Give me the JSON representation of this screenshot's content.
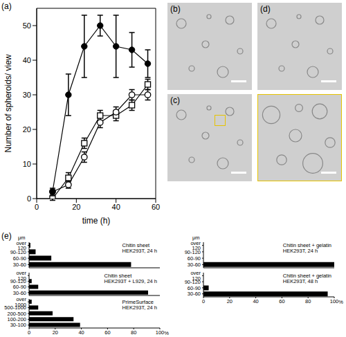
{
  "panel_labels": [
    "(a)",
    "(b)",
    "(c)",
    "(d)",
    "(e)"
  ],
  "chart_data": [
    {
      "type": "line",
      "xlabel": "time (h)",
      "ylabel": "Number of spheroids/ view",
      "xlim": [
        0,
        60
      ],
      "xticks": [
        0,
        20,
        40,
        60
      ],
      "ylim": [
        0,
        55
      ],
      "yticks": [
        0,
        10,
        20,
        30,
        40,
        50
      ],
      "x": [
        8,
        16,
        24,
        32,
        40,
        48,
        56
      ],
      "series": [
        {
          "color": "#000000",
          "marker": "open_square",
          "values": [
            0,
            6,
            16,
            24,
            24,
            27,
            33
          ],
          "errors": [
            0.5,
            1.5,
            1.5,
            1.5,
            1.5,
            1.5,
            1.5
          ]
        },
        {
          "color": "#000000",
          "marker": "open_circle",
          "values": [
            2,
            4,
            12,
            22,
            25,
            30,
            30
          ],
          "errors": [
            0.5,
            1,
            1.5,
            1.5,
            1.5,
            1.5,
            1.5
          ]
        },
        {
          "color": "#000000",
          "marker": "filled_circle",
          "values": [
            2,
            30,
            44,
            50,
            44,
            43,
            39
          ],
          "errors": [
            1,
            6,
            9,
            3,
            9,
            5,
            4
          ]
        }
      ]
    },
    {
      "type": "bar",
      "orientation": "horizontal",
      "title": "Chitin sheet\nHEK293T, 24 h",
      "ylabel": "μm",
      "categories": [
        "over 120",
        "90-120",
        "60-90",
        "30-60"
      ],
      "values": [
        1,
        5,
        17,
        78
      ],
      "color": "#000000",
      "xlim": [
        0,
        100
      ],
      "xticks": [
        0,
        20,
        40,
        60,
        80,
        100
      ],
      "tick_labels": "y"
    },
    {
      "type": "bar",
      "orientation": "horizontal",
      "title": "Chitin sheet\nHEK293T + L929, 24 h",
      "categories": [
        "over 120",
        "90-120",
        "60-90",
        "30-60"
      ],
      "values": [
        0,
        2,
        7,
        91
      ],
      "color": "#000000",
      "xlim": [
        0,
        100
      ],
      "xticks": [
        0,
        20,
        40,
        60,
        80,
        100
      ],
      "tick_labels": "y"
    },
    {
      "type": "bar",
      "orientation": "horizontal",
      "title": "PrimeSurface\nHEK293T, 24 h",
      "xlabel": "%",
      "categories": [
        "over 1000",
        "500-1000",
        "200-500",
        "100-200",
        "30-100"
      ],
      "values": [
        2,
        7,
        18,
        34,
        39
      ],
      "color": "#000000",
      "xlim": [
        0,
        100
      ],
      "xticks": [
        0,
        20,
        40,
        60,
        80,
        100
      ]
    },
    {
      "type": "bar",
      "orientation": "horizontal",
      "title": "Chitin sheet + gelatin\nHEK293T, 24 h",
      "ylabel": "μm",
      "categories": [
        "over 120",
        "90-120",
        "60-90",
        "30-60"
      ],
      "values": [
        0,
        0,
        0,
        100
      ],
      "color": "#000000",
      "xlim": [
        0,
        100
      ],
      "xticks": [
        0,
        20,
        40,
        60,
        80,
        100
      ],
      "tick_labels": "y"
    },
    {
      "type": "bar",
      "orientation": "horizontal",
      "title": "Chitin sheet + gelatin\nHEK293T, 48 h",
      "xlabel": "%",
      "categories": [
        "over 120",
        "90-120",
        "60-90",
        "30-60"
      ],
      "values": [
        0,
        0,
        4,
        95
      ],
      "color": "#000000",
      "xlim": [
        0,
        100
      ],
      "xticks": [
        0,
        20,
        40,
        60,
        80,
        100
      ]
    }
  ]
}
